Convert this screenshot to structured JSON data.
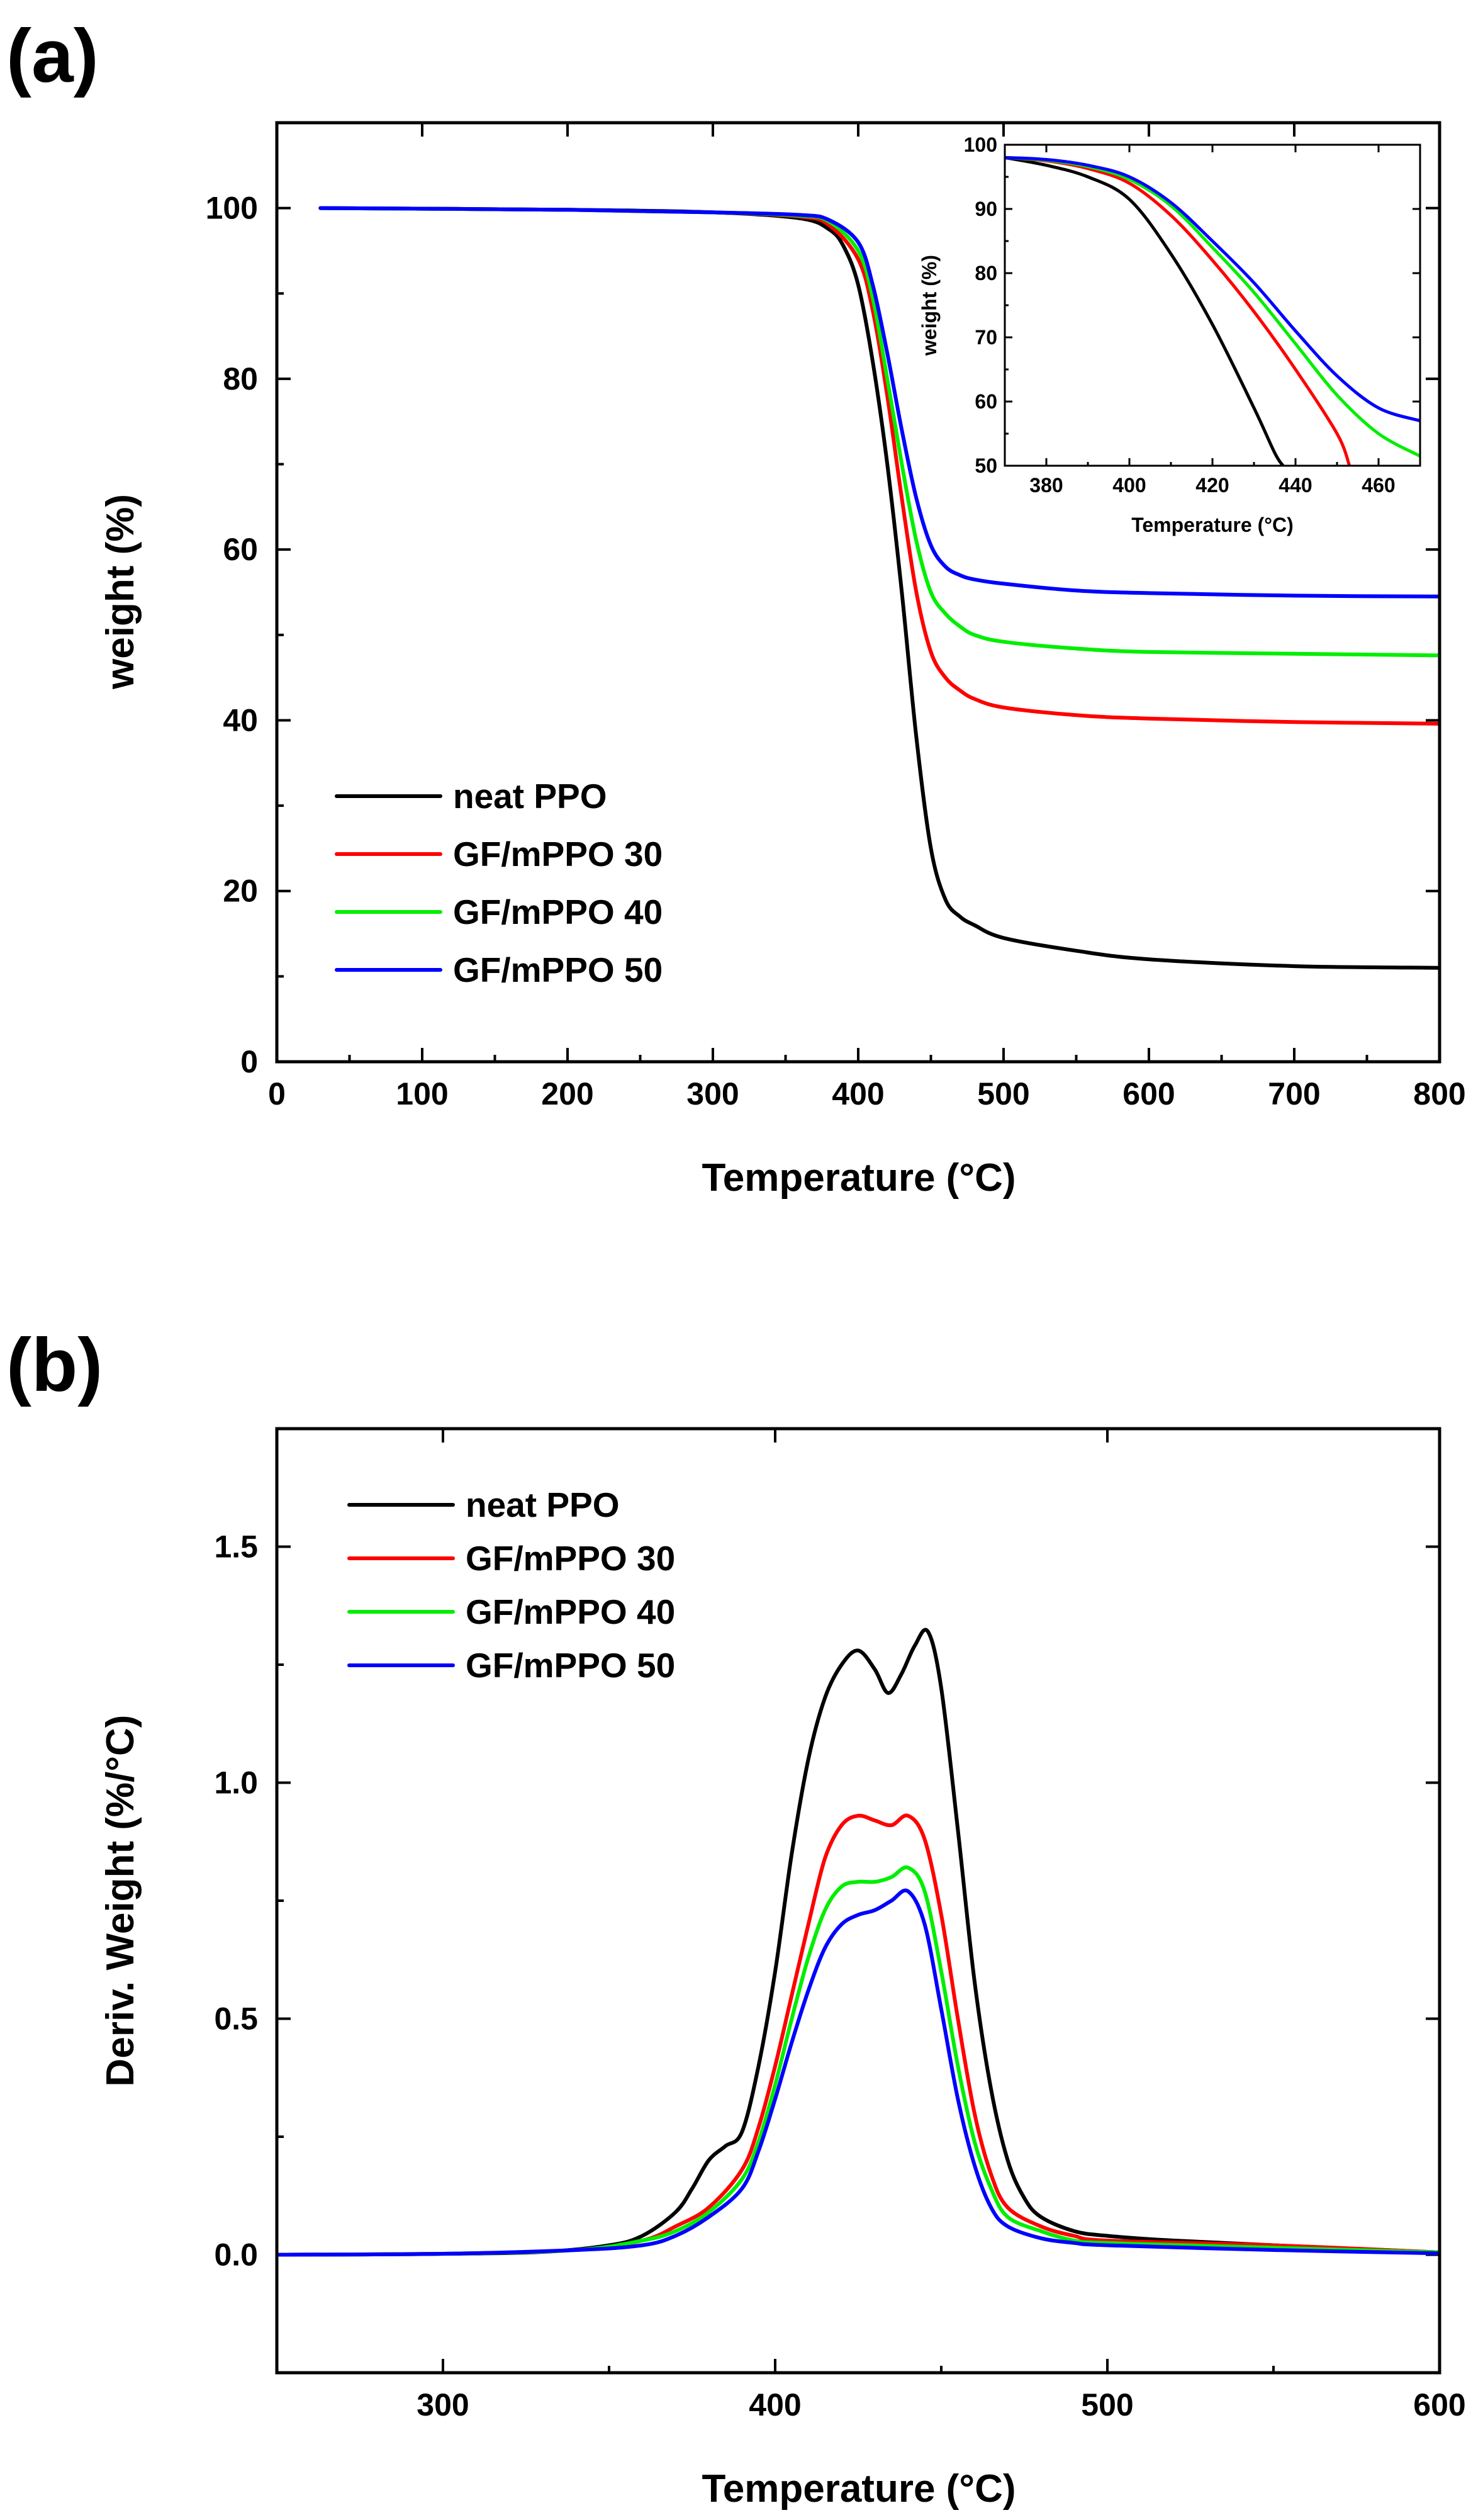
{
  "chart_data": [
    {
      "type": "line",
      "panel": "(a)",
      "xlabel": "Temperature (°C)",
      "ylabel": "weight (%)",
      "xlim": [
        0,
        800
      ],
      "ylim": [
        0,
        110
      ],
      "xticks": [
        0,
        100,
        200,
        300,
        400,
        500,
        600,
        700,
        800
      ],
      "yticks": [
        0,
        20,
        40,
        60,
        80,
        100
      ],
      "legend_position": "bottom-left",
      "series": [
        {
          "name": "neat PPO",
          "color": "#000000",
          "points": [
            [
              30,
              100
            ],
            [
              200,
              99.8
            ],
            [
              300,
              99.5
            ],
            [
              360,
              98.8
            ],
            [
              380,
              97.5
            ],
            [
              390,
              95.5
            ],
            [
              400,
              91
            ],
            [
              410,
              82
            ],
            [
              420,
              70
            ],
            [
              430,
              55
            ],
            [
              440,
              38
            ],
            [
              450,
              25
            ],
            [
              460,
              19
            ],
            [
              470,
              17
            ],
            [
              480,
              16
            ],
            [
              500,
              14.5
            ],
            [
              550,
              13
            ],
            [
              600,
              12
            ],
            [
              700,
              11.2
            ],
            [
              800,
              11
            ]
          ]
        },
        {
          "name": "GF/mPPO 30",
          "color": "#ff0000",
          "points": [
            [
              30,
              100
            ],
            [
              200,
              99.8
            ],
            [
              300,
              99.5
            ],
            [
              360,
              99
            ],
            [
              380,
              98
            ],
            [
              400,
              94
            ],
            [
              410,
              88
            ],
            [
              420,
              78
            ],
            [
              430,
              66
            ],
            [
              440,
              55
            ],
            [
              450,
              48
            ],
            [
              460,
              45
            ],
            [
              470,
              43.5
            ],
            [
              480,
              42.5
            ],
            [
              500,
              41.5
            ],
            [
              550,
              40.6
            ],
            [
              600,
              40.2
            ],
            [
              700,
              39.8
            ],
            [
              800,
              39.6
            ]
          ]
        },
        {
          "name": "GF/mPPO 40",
          "color": "#00ee00",
          "points": [
            [
              30,
              100
            ],
            [
              200,
              99.8
            ],
            [
              300,
              99.5
            ],
            [
              360,
              99.1
            ],
            [
              380,
              98.4
            ],
            [
              400,
              95
            ],
            [
              410,
              89.5
            ],
            [
              420,
              80
            ],
            [
              430,
              70
            ],
            [
              440,
              61
            ],
            [
              450,
              55
            ],
            [
              460,
              52.5
            ],
            [
              470,
              51
            ],
            [
              480,
              50
            ],
            [
              500,
              49.2
            ],
            [
              550,
              48.4
            ],
            [
              600,
              48
            ],
            [
              700,
              47.8
            ],
            [
              800,
              47.6
            ]
          ]
        },
        {
          "name": "GF/mPPO 50",
          "color": "#0000ff",
          "points": [
            [
              30,
              100
            ],
            [
              200,
              99.8
            ],
            [
              300,
              99.5
            ],
            [
              360,
              99.2
            ],
            [
              380,
              98.6
            ],
            [
              400,
              96
            ],
            [
              410,
              91
            ],
            [
              420,
              83
            ],
            [
              430,
              74
            ],
            [
              440,
              66
            ],
            [
              450,
              60.5
            ],
            [
              460,
              58
            ],
            [
              470,
              57
            ],
            [
              480,
              56.5
            ],
            [
              500,
              56
            ],
            [
              550,
              55.2
            ],
            [
              600,
              54.9
            ],
            [
              700,
              54.6
            ],
            [
              800,
              54.5
            ]
          ]
        }
      ],
      "inset": {
        "type": "line",
        "xlabel": "Temperature (°C)",
        "ylabel": "weight (%)",
        "xlim": [
          370,
          470
        ],
        "ylim": [
          50,
          100
        ],
        "xticks": [
          380,
          400,
          420,
          440,
          460
        ],
        "yticks": [
          50,
          60,
          70,
          80,
          90,
          100
        ],
        "series": [
          {
            "name": "neat PPO",
            "color": "#000000",
            "points": [
              [
                370,
                98
              ],
              [
                380,
                96.8
              ],
              [
                390,
                95
              ],
              [
                400,
                91.5
              ],
              [
                410,
                83
              ],
              [
                420,
                72
              ],
              [
                430,
                59
              ],
              [
                435,
                52
              ],
              [
                437,
                50
              ]
            ]
          },
          {
            "name": "GF/mPPO 30",
            "color": "#ff0000",
            "points": [
              [
                370,
                98
              ],
              [
                380,
                97.5
              ],
              [
                390,
                96.3
              ],
              [
                400,
                94
              ],
              [
                410,
                89
              ],
              [
                420,
                82
              ],
              [
                430,
                74
              ],
              [
                440,
                65
              ],
              [
                450,
                55
              ],
              [
                453,
                50
              ]
            ]
          },
          {
            "name": "GF/mPPO 40",
            "color": "#00ee00",
            "points": [
              [
                370,
                98
              ],
              [
                380,
                97.6
              ],
              [
                390,
                96.6
              ],
              [
                400,
                94.6
              ],
              [
                410,
                90.5
              ],
              [
                420,
                84
              ],
              [
                430,
                77
              ],
              [
                440,
                69
              ],
              [
                450,
                61
              ],
              [
                460,
                55
              ],
              [
                470,
                51.5
              ]
            ]
          },
          {
            "name": "GF/mPPO 50",
            "color": "#0000ff",
            "points": [
              [
                370,
                98
              ],
              [
                380,
                97.7
              ],
              [
                390,
                96.8
              ],
              [
                400,
                95
              ],
              [
                410,
                91
              ],
              [
                420,
                85
              ],
              [
                430,
                78.5
              ],
              [
                440,
                71
              ],
              [
                450,
                64
              ],
              [
                460,
                59
              ],
              [
                470,
                57
              ]
            ]
          }
        ]
      }
    },
    {
      "type": "line",
      "panel": "(b)",
      "xlabel": "Temperature (°C)",
      "ylabel": "Deriv. Weight (%/°C)",
      "xlim": [
        250,
        600
      ],
      "ylim": [
        -0.25,
        1.75
      ],
      "xticks": [
        300,
        400,
        500,
        600
      ],
      "yticks": [
        0.0,
        0.5,
        1.0,
        1.5
      ],
      "ytick_labels": [
        "0.0",
        "0.5",
        "1.0",
        "1.5"
      ],
      "legend_position": "top-left",
      "series": [
        {
          "name": "neat PPO",
          "color": "#000000",
          "points": [
            [
              250,
              0
            ],
            [
              300,
              0.002
            ],
            [
              330,
              0.006
            ],
            [
              350,
              0.02
            ],
            [
              360,
              0.04
            ],
            [
              370,
              0.09
            ],
            [
              375,
              0.14
            ],
            [
              380,
              0.2
            ],
            [
              385,
              0.23
            ],
            [
              390,
              0.26
            ],
            [
              395,
              0.4
            ],
            [
              400,
              0.6
            ],
            [
              405,
              0.85
            ],
            [
              410,
              1.05
            ],
            [
              415,
              1.18
            ],
            [
              420,
              1.25
            ],
            [
              425,
              1.28
            ],
            [
              430,
              1.24
            ],
            [
              434,
              1.19
            ],
            [
              438,
              1.23
            ],
            [
              442,
              1.29
            ],
            [
              446,
              1.32
            ],
            [
              450,
              1.2
            ],
            [
              455,
              0.9
            ],
            [
              460,
              0.58
            ],
            [
              465,
              0.35
            ],
            [
              470,
              0.2
            ],
            [
              475,
              0.12
            ],
            [
              480,
              0.08
            ],
            [
              490,
              0.05
            ],
            [
              500,
              0.04
            ],
            [
              520,
              0.03
            ],
            [
              550,
              0.02
            ],
            [
              600,
              0.005
            ]
          ]
        },
        {
          "name": "GF/mPPO 30",
          "color": "#ff0000",
          "points": [
            [
              250,
              0
            ],
            [
              300,
              0.002
            ],
            [
              340,
              0.01
            ],
            [
              360,
              0.03
            ],
            [
              370,
              0.06
            ],
            [
              380,
              0.1
            ],
            [
              390,
              0.18
            ],
            [
              395,
              0.27
            ],
            [
              400,
              0.4
            ],
            [
              405,
              0.55
            ],
            [
              410,
              0.7
            ],
            [
              415,
              0.84
            ],
            [
              420,
              0.91
            ],
            [
              425,
              0.93
            ],
            [
              430,
              0.92
            ],
            [
              435,
              0.91
            ],
            [
              440,
              0.93
            ],
            [
              445,
              0.88
            ],
            [
              450,
              0.72
            ],
            [
              455,
              0.5
            ],
            [
              460,
              0.3
            ],
            [
              465,
              0.17
            ],
            [
              470,
              0.1
            ],
            [
              480,
              0.06
            ],
            [
              490,
              0.04
            ],
            [
              500,
              0.03
            ],
            [
              550,
              0.02
            ],
            [
              600,
              0.005
            ]
          ]
        },
        {
          "name": "GF/mPPO 40",
          "color": "#00ee00",
          "points": [
            [
              250,
              0
            ],
            [
              300,
              0.002
            ],
            [
              340,
              0.01
            ],
            [
              360,
              0.03
            ],
            [
              370,
              0.05
            ],
            [
              380,
              0.09
            ],
            [
              390,
              0.16
            ],
            [
              395,
              0.24
            ],
            [
              400,
              0.36
            ],
            [
              405,
              0.5
            ],
            [
              410,
              0.63
            ],
            [
              415,
              0.73
            ],
            [
              420,
              0.78
            ],
            [
              425,
              0.79
            ],
            [
              430,
              0.79
            ],
            [
              435,
              0.8
            ],
            [
              440,
              0.82
            ],
            [
              445,
              0.77
            ],
            [
              450,
              0.6
            ],
            [
              455,
              0.4
            ],
            [
              460,
              0.24
            ],
            [
              465,
              0.14
            ],
            [
              470,
              0.08
            ],
            [
              480,
              0.05
            ],
            [
              490,
              0.03
            ],
            [
              500,
              0.025
            ],
            [
              550,
              0.015
            ],
            [
              600,
              0.005
            ]
          ]
        },
        {
          "name": "GF/mPPO 50",
          "color": "#0000ff",
          "points": [
            [
              250,
              0
            ],
            [
              300,
              0.002
            ],
            [
              340,
              0.01
            ],
            [
              360,
              0.02
            ],
            [
              370,
              0.04
            ],
            [
              380,
              0.08
            ],
            [
              390,
              0.14
            ],
            [
              395,
              0.22
            ],
            [
              400,
              0.33
            ],
            [
              405,
              0.45
            ],
            [
              410,
              0.56
            ],
            [
              415,
              0.65
            ],
            [
              420,
              0.7
            ],
            [
              425,
              0.72
            ],
            [
              430,
              0.73
            ],
            [
              435,
              0.75
            ],
            [
              440,
              0.77
            ],
            [
              445,
              0.7
            ],
            [
              450,
              0.52
            ],
            [
              455,
              0.33
            ],
            [
              460,
              0.19
            ],
            [
              465,
              0.1
            ],
            [
              470,
              0.06
            ],
            [
              480,
              0.035
            ],
            [
              490,
              0.025
            ],
            [
              500,
              0.02
            ],
            [
              550,
              0.01
            ],
            [
              600,
              0.003
            ]
          ]
        }
      ]
    }
  ]
}
